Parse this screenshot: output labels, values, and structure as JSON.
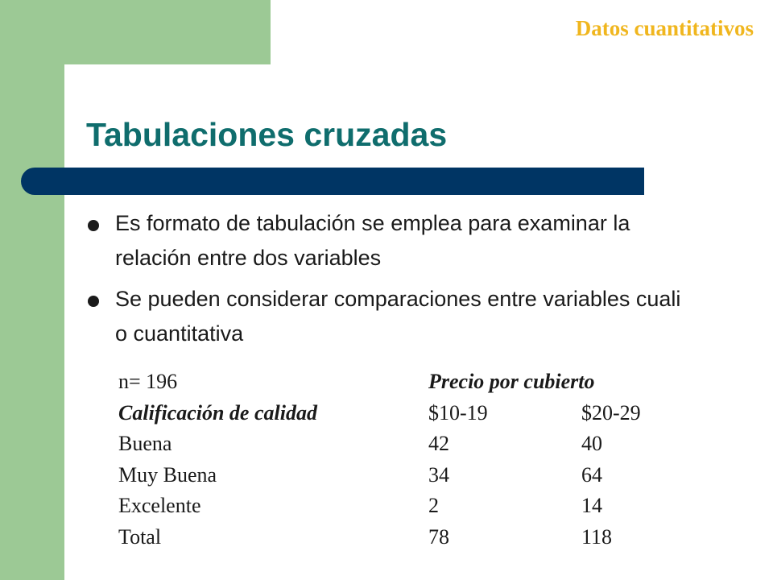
{
  "header": {
    "section": "Datos cuantitativos"
  },
  "slide": {
    "title": "Tabulaciones cruzadas",
    "bullets": [
      "Es formato de tabulación se emplea para examinar la relación entre dos variables",
      "Se pueden considerar comparaciones entre variables cuali o cuantitativa"
    ]
  },
  "table": {
    "n_label": "n= 196",
    "col_group_header": "Precio por cubierto",
    "row_header": "Calificación de calidad",
    "columns": [
      "$10-19",
      "$20-29"
    ],
    "rows": [
      {
        "label": "Buena",
        "values": [
          "42",
          "40"
        ]
      },
      {
        "label": "Muy Buena",
        "values": [
          "34",
          "64"
        ]
      },
      {
        "label": "Excelente",
        "values": [
          "2",
          "14"
        ]
      },
      {
        "label": "Total",
        "values": [
          "78",
          "118"
        ]
      }
    ]
  },
  "colors": {
    "green_accent": "#9cc995",
    "title_teal": "#0f6d6d",
    "bar_navy": "#003564",
    "section_gold": "#f0b61e"
  }
}
